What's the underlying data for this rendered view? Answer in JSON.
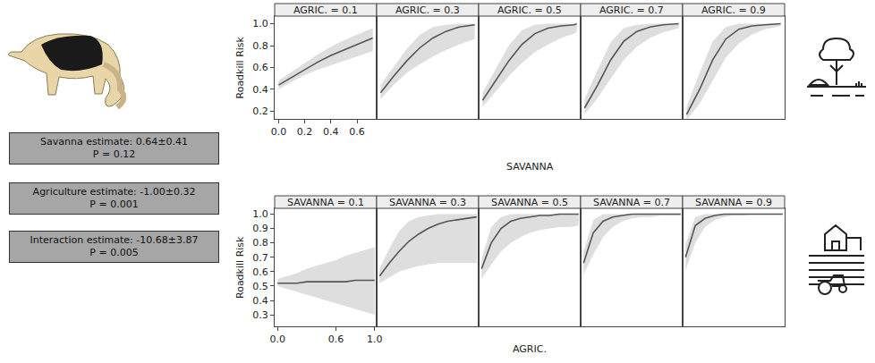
{
  "annotations": [
    {
      "text": "Savanna estimate: 0.64±0.41",
      "p": "P = 0.12"
    },
    {
      "text": "Agriculture estimate: -1.00±0.32",
      "p": "P = 0.001"
    },
    {
      "text": "Interaction estimate: -10.68±3.87",
      "p": "P = 0.005"
    }
  ],
  "chart_data": [
    {
      "type": "line",
      "x_label": "SAVANNA",
      "y_label": "Roadkill Risk",
      "color": "#555555",
      "xlim": [
        -0.03,
        0.75
      ],
      "ylim": [
        0.13,
        1.07
      ],
      "xticks": [
        {
          "value": 0,
          "label": "0.0"
        },
        0.2,
        0.4,
        0.6
      ],
      "yticks": [
        0.2,
        0.4,
        0.6,
        0.8,
        {
          "value": 1,
          "label": "1.0"
        }
      ],
      "x": [
        0,
        0.1,
        0.2,
        0.3,
        0.4,
        0.5,
        0.6,
        0.7,
        0.72
      ],
      "panels": [
        {
          "title": "AGRIC. = 0.1",
          "values": [
            0.44,
            0.51,
            0.58,
            0.65,
            0.71,
            0.76,
            0.81,
            0.86,
            0.87
          ],
          "lower": [
            0.4,
            0.47,
            0.53,
            0.58,
            0.62,
            0.66,
            0.7,
            0.74,
            0.75
          ],
          "upper": [
            0.48,
            0.56,
            0.64,
            0.72,
            0.79,
            0.85,
            0.9,
            0.95,
            0.96
          ]
        },
        {
          "title": "AGRIC. = 0.3",
          "values": [
            0.37,
            0.52,
            0.66,
            0.78,
            0.87,
            0.93,
            0.97,
            0.99,
            0.99
          ],
          "lower": [
            0.31,
            0.44,
            0.55,
            0.63,
            0.7,
            0.76,
            0.81,
            0.85,
            0.86
          ],
          "upper": [
            0.44,
            0.61,
            0.77,
            0.9,
            0.97,
            0.99,
            1.0,
            1.0,
            1.0
          ]
        },
        {
          "title": "AGRIC. = 0.5",
          "values": [
            0.3,
            0.48,
            0.66,
            0.81,
            0.91,
            0.96,
            0.98,
            0.99,
            1.0
          ],
          "lower": [
            0.24,
            0.38,
            0.52,
            0.64,
            0.74,
            0.81,
            0.87,
            0.91,
            0.92
          ],
          "upper": [
            0.37,
            0.59,
            0.8,
            0.94,
            0.99,
            1.0,
            1.0,
            1.0,
            1.0
          ]
        },
        {
          "title": "AGRIC. = 0.7",
          "values": [
            0.23,
            0.44,
            0.67,
            0.84,
            0.93,
            0.97,
            0.99,
            1.0,
            1.0
          ],
          "lower": [
            0.17,
            0.32,
            0.5,
            0.67,
            0.79,
            0.87,
            0.92,
            0.95,
            0.96
          ],
          "upper": [
            0.31,
            0.58,
            0.83,
            0.96,
            0.99,
            1.0,
            1.0,
            1.0,
            1.0
          ]
        },
        {
          "title": "AGRIC. = 0.9",
          "values": [
            0.17,
            0.4,
            0.67,
            0.86,
            0.95,
            0.98,
            0.99,
            1.0,
            1.0
          ],
          "lower": [
            0.12,
            0.27,
            0.48,
            0.69,
            0.82,
            0.9,
            0.95,
            0.97,
            0.98
          ],
          "upper": [
            0.24,
            0.55,
            0.84,
            0.97,
            1.0,
            1.0,
            1.0,
            1.0,
            1.0
          ]
        }
      ]
    },
    {
      "type": "line",
      "x_label": "AGRIC.",
      "y_label": "Roadkill Risk",
      "color": "#555555",
      "xlim": [
        -0.03,
        1.02
      ],
      "ylim": [
        0.22,
        1.04
      ],
      "xticks": [
        {
          "value": 0,
          "label": "0.0"
        },
        0.6,
        {
          "value": 1,
          "label": "1.0"
        }
      ],
      "yticks": [
        0.3,
        0.4,
        0.5,
        0.6,
        0.7,
        0.8,
        0.9,
        {
          "value": 1,
          "label": "1.0"
        }
      ],
      "x": [
        0,
        0.1,
        0.2,
        0.3,
        0.4,
        0.5,
        0.6,
        0.7,
        0.8,
        0.9,
        1.0
      ],
      "panels": [
        {
          "title": "SAVANNA = 0.1",
          "values": [
            0.52,
            0.52,
            0.52,
            0.53,
            0.53,
            0.53,
            0.53,
            0.53,
            0.54,
            0.54,
            0.54
          ],
          "lower": [
            0.5,
            0.48,
            0.46,
            0.44,
            0.42,
            0.4,
            0.38,
            0.36,
            0.34,
            0.32,
            0.3
          ],
          "upper": [
            0.55,
            0.57,
            0.59,
            0.62,
            0.64,
            0.66,
            0.68,
            0.71,
            0.73,
            0.75,
            0.77
          ]
        },
        {
          "title": "SAVANNA = 0.3",
          "values": [
            0.57,
            0.66,
            0.74,
            0.81,
            0.86,
            0.9,
            0.93,
            0.95,
            0.96,
            0.97,
            0.98
          ],
          "lower": [
            0.52,
            0.56,
            0.6,
            0.62,
            0.64,
            0.65,
            0.66,
            0.66,
            0.66,
            0.66,
            0.66
          ],
          "upper": [
            0.62,
            0.76,
            0.88,
            0.95,
            0.98,
            0.99,
            1.0,
            1.0,
            1.0,
            1.0,
            1.0
          ]
        },
        {
          "title": "SAVANNA = 0.5",
          "values": [
            0.62,
            0.8,
            0.9,
            0.95,
            0.97,
            0.98,
            0.99,
            0.99,
            1.0,
            1.0,
            1.0
          ],
          "lower": [
            0.55,
            0.65,
            0.74,
            0.8,
            0.84,
            0.87,
            0.89,
            0.9,
            0.91,
            0.91,
            0.92
          ],
          "upper": [
            0.69,
            0.91,
            0.98,
            1.0,
            1.0,
            1.0,
            1.0,
            1.0,
            1.0,
            1.0,
            1.0
          ]
        },
        {
          "title": "SAVANNA = 0.7",
          "values": [
            0.66,
            0.87,
            0.95,
            0.98,
            0.99,
            1.0,
            1.0,
            1.0,
            1.0,
            1.0,
            1.0
          ],
          "lower": [
            0.58,
            0.72,
            0.84,
            0.91,
            0.95,
            0.97,
            0.98,
            0.98,
            0.99,
            0.99,
            0.99
          ],
          "upper": [
            0.74,
            0.96,
            1.0,
            1.0,
            1.0,
            1.0,
            1.0,
            1.0,
            1.0,
            1.0,
            1.0
          ]
        },
        {
          "title": "SAVANNA = 0.9",
          "values": [
            0.7,
            0.92,
            0.97,
            0.99,
            1.0,
            1.0,
            1.0,
            1.0,
            1.0,
            1.0,
            1.0
          ],
          "lower": [
            0.61,
            0.8,
            0.91,
            0.96,
            0.98,
            0.99,
            0.99,
            1.0,
            1.0,
            1.0,
            1.0
          ],
          "upper": [
            0.79,
            0.98,
            1.0,
            1.0,
            1.0,
            1.0,
            1.0,
            1.0,
            1.0,
            1.0,
            1.0
          ]
        }
      ]
    }
  ]
}
